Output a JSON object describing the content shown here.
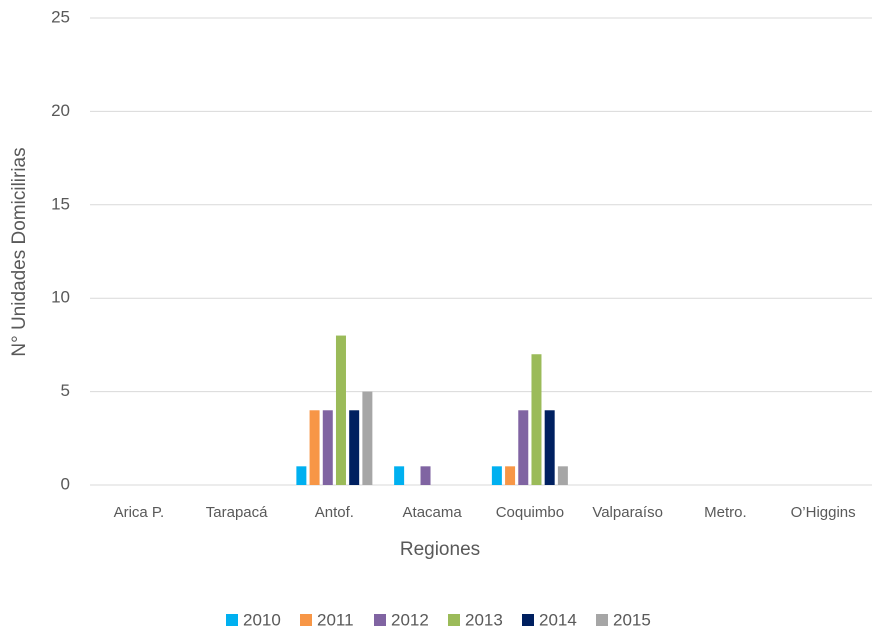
{
  "chart_data": {
    "type": "bar",
    "x_label": "Regiones",
    "y_label": "N° Unidades Domicilirias",
    "categories": [
      "Arica P.",
      "Tarapacá",
      "Antof.",
      "Atacama",
      "Coquimbo",
      "Valparaíso",
      "Metro.",
      "O’Higgins"
    ],
    "series": [
      {
        "name": "2010",
        "color": "#00b0f0",
        "values": [
          0,
          0,
          1,
          1,
          1,
          0,
          0,
          0
        ]
      },
      {
        "name": "2011",
        "color": "#f79646",
        "values": [
          0,
          0,
          4,
          0,
          1,
          0,
          0,
          0
        ]
      },
      {
        "name": "2012",
        "color": "#8064a2",
        "values": [
          0,
          0,
          4,
          1,
          4,
          0,
          0,
          0
        ]
      },
      {
        "name": "2013",
        "color": "#9bbb59",
        "values": [
          0,
          0,
          8,
          0,
          7,
          0,
          0,
          0
        ]
      },
      {
        "name": "2014",
        "color": "#002060",
        "values": [
          0,
          0,
          4,
          0,
          4,
          0,
          0,
          0
        ]
      },
      {
        "name": "2015",
        "color": "#a6a6a6",
        "values": [
          0,
          0,
          5,
          0,
          1,
          0,
          0,
          0
        ]
      }
    ],
    "ylim": [
      0,
      25
    ],
    "yticks": [
      0,
      5,
      10,
      15,
      20,
      25
    ],
    "grid": true,
    "legend": "bottom"
  }
}
